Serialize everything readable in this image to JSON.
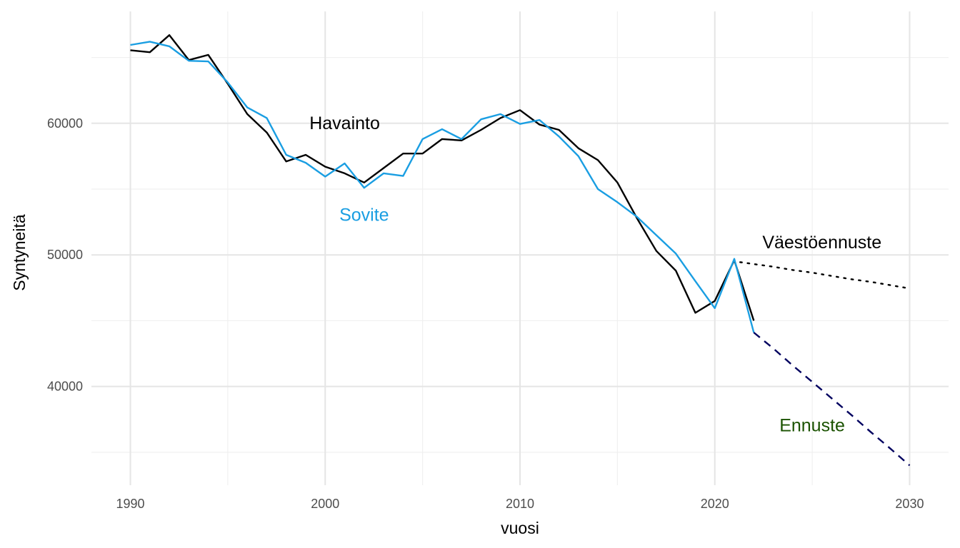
{
  "chart_data": {
    "type": "line",
    "xlabel": "vuosi",
    "ylabel": "Syntyneitä",
    "xlim": [
      1988,
      2032
    ],
    "ylim": [
      32500,
      68500
    ],
    "x_ticks": [
      1990,
      2000,
      2010,
      2020,
      2030
    ],
    "x_minor_ticks": [
      1995,
      2005,
      2015,
      2025
    ],
    "y_ticks": [
      40000,
      50000,
      60000
    ],
    "y_minor_ticks": [
      35000,
      45000,
      55000,
      65000
    ],
    "grid": true,
    "series": [
      {
        "name": "Havainto",
        "color": "#000000",
        "style": "solid",
        "x": [
          1990,
          1991,
          1992,
          1993,
          1994,
          1995,
          1996,
          1997,
          1998,
          1999,
          2000,
          2001,
          2002,
          2003,
          2004,
          2005,
          2006,
          2007,
          2008,
          2009,
          2010,
          2011,
          2012,
          2013,
          2014,
          2015,
          2016,
          2017,
          2018,
          2019,
          2020,
          2021,
          2022
        ],
        "values": [
          65550,
          65400,
          66700,
          64800,
          65200,
          63000,
          60700,
          59300,
          57100,
          57600,
          56700,
          56200,
          55500,
          56600,
          57700,
          57700,
          58800,
          58700,
          59500,
          60400,
          61000,
          59900,
          59500,
          58100,
          57200,
          55500,
          52800,
          50300,
          48800,
          45600,
          46500,
          49600,
          45000
        ]
      },
      {
        "name": "Sovite",
        "color": "#1a9ee2",
        "style": "solid",
        "x": [
          1990,
          1991,
          1992,
          1993,
          1994,
          1995,
          1996,
          1997,
          1998,
          1999,
          2000,
          2001,
          2002,
          2003,
          2004,
          2005,
          2006,
          2007,
          2008,
          2009,
          2010,
          2011,
          2012,
          2013,
          2014,
          2015,
          2016,
          2017,
          2018,
          2019,
          2020,
          2021,
          2022
        ],
        "values": [
          65950,
          66200,
          65850,
          64750,
          64700,
          63100,
          61200,
          60400,
          57600,
          57000,
          55950,
          56950,
          55100,
          56200,
          56000,
          58800,
          59550,
          58800,
          60300,
          60700,
          59950,
          60250,
          59000,
          57500,
          55000,
          54000,
          52900,
          51500,
          50100,
          48000,
          45950,
          49700,
          44100
        ]
      },
      {
        "name": "Väestöennuste",
        "color": "#000000",
        "style": "dotted",
        "x": [
          2021.3,
          2022,
          2023,
          2024,
          2025,
          2026,
          2027,
          2028,
          2029,
          2030
        ],
        "values": [
          49450,
          49300,
          49100,
          48850,
          48650,
          48400,
          48150,
          47950,
          47700,
          47450
        ]
      },
      {
        "name": "Ennuste",
        "color": "#00005f",
        "style": "dashed",
        "x": [
          2022,
          2023,
          2024,
          2025,
          2026,
          2027,
          2028,
          2029,
          2030
        ],
        "values": [
          44100,
          42900,
          41600,
          40350,
          39100,
          37850,
          36550,
          35300,
          34000
        ]
      }
    ],
    "annotations": [
      {
        "text": "Havainto",
        "x": 2001,
        "y": 59900,
        "color": "#000000"
      },
      {
        "text": "Sovite",
        "x": 2002,
        "y": 52950,
        "color": "#1a9ee2"
      },
      {
        "text": "Väestöennuste",
        "x": 2025.5,
        "y": 50850,
        "color": "#000000"
      },
      {
        "text": "Ennuste",
        "x": 2025,
        "y": 36950,
        "color": "#1a5200"
      }
    ]
  }
}
